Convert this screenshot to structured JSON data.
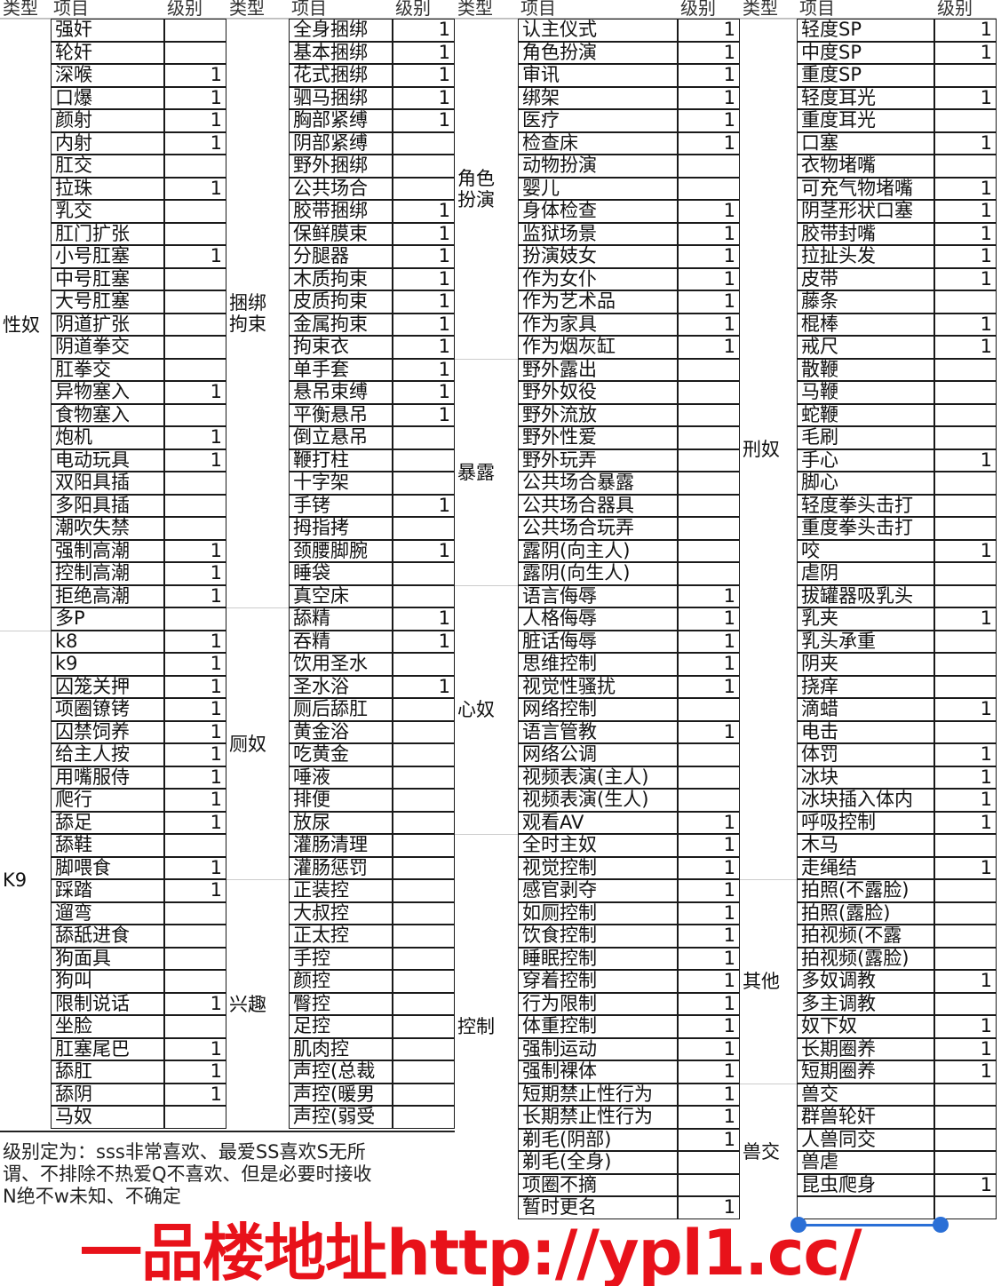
{
  "header": {
    "type": "类型",
    "item": "项目",
    "level": "级别"
  },
  "columns": [
    {
      "groups": [
        {
          "type": "性奴",
          "rows": [
            [
              "强奸",
              ""
            ],
            [
              "轮奸",
              ""
            ],
            [
              "深喉",
              "1"
            ],
            [
              "口爆",
              "1"
            ],
            [
              "颜射",
              "1"
            ],
            [
              "内射",
              "1"
            ],
            [
              "肛交",
              ""
            ],
            [
              "拉珠",
              "1"
            ],
            [
              "乳交",
              ""
            ],
            [
              "肛门扩张",
              ""
            ],
            [
              "小号肛塞",
              "1"
            ],
            [
              "中号肛塞",
              ""
            ],
            [
              "大号肛塞",
              ""
            ],
            [
              "阴道扩张",
              ""
            ],
            [
              "阴道拳交",
              ""
            ],
            [
              "肛拳交",
              ""
            ],
            [
              "异物塞入",
              "1"
            ],
            [
              "食物塞入",
              ""
            ],
            [
              "炮机",
              "1"
            ],
            [
              "电动玩具",
              "1"
            ],
            [
              "双阳具插",
              ""
            ],
            [
              "多阳具插",
              ""
            ],
            [
              "潮吹失禁",
              ""
            ],
            [
              "强制高潮",
              "1"
            ],
            [
              "控制高潮",
              "1"
            ],
            [
              "拒绝高潮",
              "1"
            ],
            [
              "多P",
              ""
            ]
          ]
        },
        {
          "type": "K9",
          "rows": [
            [
              "k8",
              "1"
            ],
            [
              "k9",
              "1"
            ],
            [
              "囚笼关押",
              "1"
            ],
            [
              "项圈镣铐",
              "1"
            ],
            [
              "囚禁饲养",
              "1"
            ],
            [
              "给主人按",
              "1"
            ],
            [
              "用嘴服侍",
              "1"
            ],
            [
              "爬行",
              "1"
            ],
            [
              "舔足",
              "1"
            ],
            [
              "舔鞋",
              ""
            ],
            [
              "脚喂食",
              "1"
            ],
            [
              "踩踏",
              "1"
            ],
            [
              "遛弯",
              ""
            ],
            [
              "舔舐进食",
              ""
            ],
            [
              "狗面具",
              ""
            ],
            [
              "狗叫",
              ""
            ],
            [
              "限制说话",
              "1"
            ],
            [
              "坐脸",
              ""
            ],
            [
              "肛塞尾巴",
              "1"
            ],
            [
              "舔肛",
              "1"
            ],
            [
              "舔阴",
              "1"
            ],
            [
              "马奴",
              ""
            ]
          ]
        }
      ]
    },
    {
      "groups": [
        {
          "type": "捆绑拘束",
          "rows": [
            [
              "全身捆绑",
              "1"
            ],
            [
              "基本捆绑",
              "1"
            ],
            [
              "花式捆绑",
              "1"
            ],
            [
              "驷马捆绑",
              "1"
            ],
            [
              "胸部紧缚",
              "1"
            ],
            [
              "阴部紧缚",
              ""
            ],
            [
              "野外捆绑",
              ""
            ],
            [
              "公共场合",
              ""
            ],
            [
              "胶带捆绑",
              "1"
            ],
            [
              "保鲜膜束",
              "1"
            ],
            [
              "分腿器",
              "1"
            ],
            [
              "木质拘束",
              "1"
            ],
            [
              "皮质拘束",
              "1"
            ],
            [
              "金属拘束",
              "1"
            ],
            [
              "拘束衣",
              "1"
            ],
            [
              "单手套",
              "1"
            ],
            [
              "悬吊束缚",
              "1"
            ],
            [
              "平衡悬吊",
              "1"
            ],
            [
              "倒立悬吊",
              ""
            ],
            [
              "鞭打柱",
              ""
            ],
            [
              "十字架",
              ""
            ],
            [
              "手铐",
              "1"
            ],
            [
              "拇指拷",
              ""
            ],
            [
              "颈腰脚腕",
              "1"
            ],
            [
              "睡袋",
              ""
            ],
            [
              "真空床",
              ""
            ]
          ]
        },
        {
          "type": "厕奴",
          "rows": [
            [
              "舔精",
              "1"
            ],
            [
              "吞精",
              "1"
            ],
            [
              "饮用圣水",
              ""
            ],
            [
              "圣水浴",
              "1"
            ],
            [
              "厕后舔肛",
              ""
            ],
            [
              "黄金浴",
              ""
            ],
            [
              "吃黄金",
              ""
            ],
            [
              "唾液",
              ""
            ],
            [
              "排便",
              ""
            ],
            [
              "放尿",
              ""
            ],
            [
              "灌肠清理",
              ""
            ],
            [
              "灌肠惩罚",
              ""
            ]
          ]
        },
        {
          "type": "兴趣",
          "rows": [
            [
              "正装控",
              ""
            ],
            [
              "大叔控",
              ""
            ],
            [
              "正太控",
              ""
            ],
            [
              "手控",
              ""
            ],
            [
              "颜控",
              ""
            ],
            [
              "臀控",
              ""
            ],
            [
              "足控",
              ""
            ],
            [
              "肌肉控",
              ""
            ],
            [
              "声控(总裁",
              ""
            ],
            [
              "声控(暖男",
              ""
            ],
            [
              "声控(弱受",
              ""
            ]
          ]
        }
      ]
    },
    {
      "groups": [
        {
          "type": "角色扮演",
          "rows": [
            [
              "认主仪式",
              "1"
            ],
            [
              "角色扮演",
              "1"
            ],
            [
              "审讯",
              "1"
            ],
            [
              "绑架",
              "1"
            ],
            [
              "医疗",
              "1"
            ],
            [
              "检查床",
              "1"
            ],
            [
              "动物扮演",
              ""
            ],
            [
              "婴儿",
              ""
            ],
            [
              "身体检查",
              "1"
            ],
            [
              "监狱场景",
              "1"
            ],
            [
              "扮演妓女",
              "1"
            ],
            [
              "作为女仆",
              "1"
            ],
            [
              "作为艺术品",
              "1"
            ],
            [
              "作为家具",
              "1"
            ],
            [
              "作为烟灰缸",
              "1"
            ]
          ]
        },
        {
          "type": "暴露",
          "rows": [
            [
              "野外露出",
              ""
            ],
            [
              "野外奴役",
              ""
            ],
            [
              "野外流放",
              ""
            ],
            [
              "野外性爱",
              ""
            ],
            [
              "野外玩弄",
              ""
            ],
            [
              "公共场合暴露",
              ""
            ],
            [
              "公共场合器具",
              ""
            ],
            [
              "公共场合玩弄",
              ""
            ],
            [
              "露阴(向主人)",
              ""
            ],
            [
              "露阴(向生人)",
              ""
            ]
          ]
        },
        {
          "type": "心奴",
          "rows": [
            [
              "语言侮辱",
              "1"
            ],
            [
              "人格侮辱",
              "1"
            ],
            [
              "脏话侮辱",
              "1"
            ],
            [
              "思维控制",
              "1"
            ],
            [
              "视觉性骚扰",
              "1"
            ],
            [
              "网络控制",
              ""
            ],
            [
              "语言管教",
              "1"
            ],
            [
              "网络公调",
              ""
            ],
            [
              "视频表演(主人)",
              ""
            ],
            [
              "视频表演(生人)",
              ""
            ],
            [
              "观看AV",
              "1"
            ]
          ]
        },
        {
          "type": "控制",
          "rows": [
            [
              "全时主奴",
              "1"
            ],
            [
              "视觉控制",
              "1"
            ],
            [
              "感官剥夺",
              "1"
            ],
            [
              "如厕控制",
              "1"
            ],
            [
              "饮食控制",
              "1"
            ],
            [
              "睡眠控制",
              "1"
            ],
            [
              "穿着控制",
              "1"
            ],
            [
              "行为限制",
              "1"
            ],
            [
              "体重控制",
              "1"
            ],
            [
              "强制运动",
              "1"
            ],
            [
              "强制裸体",
              "1"
            ],
            [
              "短期禁止性行为",
              "1"
            ],
            [
              "长期禁止性行为",
              "1"
            ],
            [
              "剃毛(阴部)",
              "1"
            ],
            [
              "剃毛(全身)",
              ""
            ],
            [
              "项圈不摘",
              ""
            ],
            [
              "暂时更名",
              "1"
            ]
          ]
        }
      ]
    },
    {
      "groups": [
        {
          "type": "刑奴",
          "rows": [
            [
              "轻度SP",
              "1"
            ],
            [
              "中度SP",
              "1"
            ],
            [
              "重度SP",
              ""
            ],
            [
              "轻度耳光",
              "1"
            ],
            [
              "重度耳光",
              ""
            ],
            [
              "口塞",
              "1"
            ],
            [
              "衣物堵嘴",
              ""
            ],
            [
              "可充气物堵嘴",
              "1"
            ],
            [
              "阴茎形状口塞",
              "1"
            ],
            [
              "胶带封嘴",
              "1"
            ],
            [
              "拉扯头发",
              "1"
            ],
            [
              "皮带",
              "1"
            ],
            [
              "藤条",
              ""
            ],
            [
              "棍棒",
              "1"
            ],
            [
              "戒尺",
              "1"
            ],
            [
              "散鞭",
              ""
            ],
            [
              "马鞭",
              ""
            ],
            [
              "蛇鞭",
              ""
            ],
            [
              "毛刷",
              ""
            ],
            [
              "手心",
              "1"
            ],
            [
              "脚心",
              ""
            ],
            [
              "轻度拳头击打",
              ""
            ],
            [
              "重度拳头击打",
              ""
            ],
            [
              "咬",
              "1"
            ],
            [
              "虐阴",
              ""
            ],
            [
              "拔罐器吸乳头",
              ""
            ],
            [
              "乳夹",
              "1"
            ],
            [
              "乳头承重",
              ""
            ],
            [
              "阴夹",
              ""
            ],
            [
              "挠痒",
              ""
            ],
            [
              "滴蜡",
              "1"
            ],
            [
              "电击",
              ""
            ],
            [
              "体罚",
              "1"
            ],
            [
              "冰块",
              "1"
            ],
            [
              "冰块插入体内",
              "1"
            ],
            [
              "呼吸控制",
              "1"
            ],
            [
              "木马",
              ""
            ],
            [
              "走绳结",
              "1"
            ]
          ]
        },
        {
          "type": "其他",
          "rows": [
            [
              "拍照(不露脸)",
              ""
            ],
            [
              "拍照(露脸)",
              ""
            ],
            [
              "拍视频(不露",
              ""
            ],
            [
              "拍视频(露脸)",
              ""
            ],
            [
              "多奴调教",
              "1"
            ],
            [
              "多主调教",
              ""
            ],
            [
              "奴下奴",
              "1"
            ],
            [
              "长期圈养",
              "1"
            ],
            [
              "短期圈养",
              "1"
            ]
          ]
        },
        {
          "type": "兽交",
          "rows": [
            [
              "兽交",
              ""
            ],
            [
              "群兽轮奸",
              ""
            ],
            [
              "人兽同交",
              ""
            ],
            [
              "兽虐",
              ""
            ],
            [
              "昆虫爬身",
              "1"
            ],
            [
              "",
              ""
            ]
          ]
        }
      ]
    }
  ],
  "note": {
    "lines": [
      "级别定为：sss非常喜欢、最爱SS喜欢S无所",
      "谓、不排除不热爱Q不喜欢、但是必要时接收",
      "N绝不w未知、不确定"
    ]
  },
  "watermark": "一品楼地址http://ypl1.cc/",
  "colors": {
    "watermark": "#e8121a",
    "selection": "#2a6fd6"
  }
}
